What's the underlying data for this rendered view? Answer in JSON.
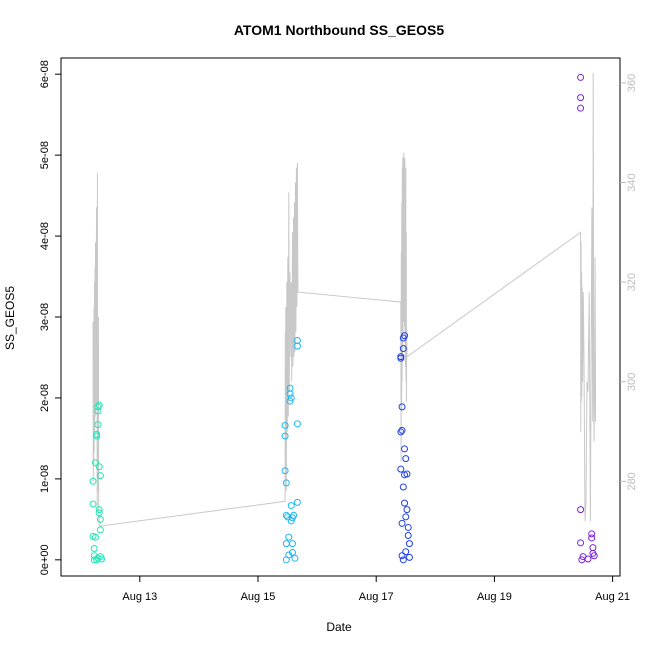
{
  "chart_data": {
    "type": "scatter",
    "title": "ATOM1 Northbound SS_GEOS5",
    "xlabel": "Date",
    "ylabel": "SS_GEOS5",
    "xlim": [
      "2023-08-11T16:00",
      "2023-08-21T03:00"
    ],
    "ylim": [
      -2e-09,
      6.2e-08
    ],
    "y_ticks": [
      "0e+00",
      "1e-08",
      "2e-08",
      "3e-08",
      "4e-08",
      "5e-08",
      "6e-08"
    ],
    "x_ticks": [
      "Aug 13",
      "Aug 15",
      "Aug 17",
      "Aug 19",
      "Aug 21"
    ],
    "y2_ticks": [
      "280",
      "300",
      "320",
      "340",
      "360"
    ],
    "y2lim": [
      261,
      365
    ],
    "colors": {
      "flight1": "#1de9b6",
      "flight2": "#1ab7f0",
      "flight3": "#1f3fe6",
      "flight4": "#7b1fe0",
      "gray_line": "#c8c8c8",
      "secondary_axis": "#bdbdbd"
    },
    "series": [
      {
        "color_key": "flight1",
        "points": [
          [
            "2023-08-12T05:00",
            9.7e-09
          ],
          [
            "2023-08-12T05:00",
            6.9e-09
          ],
          [
            "2023-08-12T05:00",
            2.9e-09
          ],
          [
            "2023-08-12T05:30",
            1.4e-09
          ],
          [
            "2023-08-12T05:30",
            5e-10
          ],
          [
            "2023-08-12T06:00",
            1.2e-08
          ],
          [
            "2023-08-12T06:00",
            2.8e-09
          ],
          [
            "2023-08-12T06:30",
            1.55e-08
          ],
          [
            "2023-08-12T06:30",
            1.53e-08
          ],
          [
            "2023-08-12T07:00",
            1.89e-08
          ],
          [
            "2023-08-12T07:00",
            1.84e-08
          ],
          [
            "2023-08-12T07:00",
            1.67e-08
          ],
          [
            "2023-08-12T07:30",
            1.91e-08
          ],
          [
            "2023-08-12T07:30",
            1.15e-08
          ],
          [
            "2023-08-12T07:30",
            6.2e-09
          ],
          [
            "2023-08-12T07:30",
            5.8e-09
          ],
          [
            "2023-08-12T08:00",
            1.04e-08
          ],
          [
            "2023-08-12T08:00",
            5e-09
          ],
          [
            "2023-08-12T08:00",
            3.7e-09
          ],
          [
            "2023-08-12T06:30",
            0.0
          ],
          [
            "2023-08-12T07:00",
            2e-10
          ],
          [
            "2023-08-12T08:00",
            4e-10
          ],
          [
            "2023-08-12T05:30",
            0.0
          ],
          [
            "2023-08-12T08:30",
            1e-10
          ]
        ]
      },
      {
        "color_key": "flight2",
        "points": [
          [
            "2023-08-15T11:00",
            1.66e-08
          ],
          [
            "2023-08-15T11:00",
            1.53e-08
          ],
          [
            "2023-08-15T11:00",
            1.1e-08
          ],
          [
            "2023-08-15T11:30",
            9.5e-09
          ],
          [
            "2023-08-15T11:30",
            5.5e-09
          ],
          [
            "2023-08-15T11:30",
            2e-09
          ],
          [
            "2023-08-15T12:00",
            5.3e-09
          ],
          [
            "2023-08-15T12:30",
            2.8e-09
          ],
          [
            "2023-08-15T13:00",
            2.12e-08
          ],
          [
            "2023-08-15T13:00",
            2.05e-08
          ],
          [
            "2023-08-15T13:00",
            1.96e-08
          ],
          [
            "2023-08-15T13:30",
            2e-08
          ],
          [
            "2023-08-15T13:30",
            6.7e-09
          ],
          [
            "2023-08-15T13:30",
            4.8e-09
          ],
          [
            "2023-08-15T14:00",
            5.2e-09
          ],
          [
            "2023-08-15T14:30",
            5.5e-09
          ],
          [
            "2023-08-15T14:00",
            2e-09
          ],
          [
            "2023-08-15T16:00",
            2.71e-08
          ],
          [
            "2023-08-15T16:00",
            2.64e-08
          ],
          [
            "2023-08-15T16:00",
            1.68e-08
          ],
          [
            "2023-08-15T16:00",
            7.1e-09
          ],
          [
            "2023-08-15T12:30",
            6e-10
          ],
          [
            "2023-08-15T14:00",
            9e-10
          ],
          [
            "2023-08-15T15:00",
            2e-10
          ],
          [
            "2023-08-15T11:30",
            0.0
          ]
        ]
      },
      {
        "color_key": "flight3",
        "points": [
          [
            "2023-08-17T10:00",
            2.51e-08
          ],
          [
            "2023-08-17T10:00",
            2.49e-08
          ],
          [
            "2023-08-17T10:00",
            1.58e-08
          ],
          [
            "2023-08-17T10:00",
            1.12e-08
          ],
          [
            "2023-08-17T10:30",
            1.89e-08
          ],
          [
            "2023-08-17T10:30",
            1.6e-08
          ],
          [
            "2023-08-17T11:00",
            2.74e-08
          ],
          [
            "2023-08-17T11:00",
            2.61e-08
          ],
          [
            "2023-08-17T11:00",
            9e-09
          ],
          [
            "2023-08-17T11:30",
            2.77e-08
          ],
          [
            "2023-08-17T11:30",
            1.37e-08
          ],
          [
            "2023-08-17T11:30",
            1.05e-08
          ],
          [
            "2023-08-17T11:30",
            7e-09
          ],
          [
            "2023-08-17T12:00",
            1.25e-08
          ],
          [
            "2023-08-17T12:00",
            5.3e-09
          ],
          [
            "2023-08-17T12:30",
            1.06e-08
          ],
          [
            "2023-08-17T12:30",
            6.2e-09
          ],
          [
            "2023-08-17T13:00",
            4e-09
          ],
          [
            "2023-08-17T13:00",
            3e-09
          ],
          [
            "2023-08-17T13:30",
            2e-09
          ],
          [
            "2023-08-17T10:30",
            4.5e-09
          ],
          [
            "2023-08-17T10:30",
            5e-10
          ],
          [
            "2023-08-17T12:00",
            1e-09
          ],
          [
            "2023-08-17T13:30",
            3e-10
          ],
          [
            "2023-08-17T11:00",
            0.0
          ]
        ]
      },
      {
        "color_key": "flight4",
        "points": [
          [
            "2023-08-20T11:00",
            5.96e-08
          ],
          [
            "2023-08-20T11:00",
            5.71e-08
          ],
          [
            "2023-08-20T11:00",
            5.58e-08
          ],
          [
            "2023-08-20T11:00",
            6.2e-09
          ],
          [
            "2023-08-20T11:00",
            2.1e-09
          ],
          [
            "2023-08-20T15:30",
            3.2e-09
          ],
          [
            "2023-08-20T15:30",
            2.7e-09
          ],
          [
            "2023-08-20T16:00",
            1.5e-09
          ],
          [
            "2023-08-20T16:00",
            8e-10
          ],
          [
            "2023-08-20T12:00",
            4e-10
          ],
          [
            "2023-08-20T14:00",
            1e-10
          ],
          [
            "2023-08-20T16:30",
            5e-10
          ],
          [
            "2023-08-20T11:30",
            0.0
          ]
        ]
      }
    ],
    "pressure_line": [
      [
        "2023-08-12T05:00",
        312
      ],
      [
        "2023-08-12T05:06",
        280
      ],
      [
        "2023-08-12T05:12",
        311
      ],
      [
        "2023-08-12T05:18",
        283
      ],
      [
        "2023-08-12T05:24",
        315
      ],
      [
        "2023-08-12T05:30",
        286
      ],
      [
        "2023-08-12T05:36",
        320
      ],
      [
        "2023-08-12T05:42",
        290
      ],
      [
        "2023-08-12T05:48",
        323
      ],
      [
        "2023-08-12T05:54",
        293
      ],
      [
        "2023-08-12T06:00",
        328
      ],
      [
        "2023-08-12T06:06",
        298
      ],
      [
        "2023-08-12T06:12",
        322
      ],
      [
        "2023-08-12T06:18",
        295
      ],
      [
        "2023-08-12T06:24",
        335
      ],
      [
        "2023-08-12T06:30",
        300
      ],
      [
        "2023-08-12T06:36",
        315
      ],
      [
        "2023-08-12T06:42",
        274
      ],
      [
        "2023-08-12T06:48",
        342
      ],
      [
        "2023-08-12T06:54",
        282
      ],
      [
        "2023-08-12T07:00",
        305
      ],
      [
        "2023-08-12T07:06",
        278
      ],
      [
        "2023-08-12T07:12",
        313
      ],
      [
        "2023-08-12T07:18",
        276
      ],
      [
        "2023-08-12T07:30",
        271
      ],
      [
        "2023-08-15T11:00",
        276
      ],
      [
        "2023-08-15T11:06",
        310
      ],
      [
        "2023-08-15T11:12",
        286
      ],
      [
        "2023-08-15T11:18",
        315
      ],
      [
        "2023-08-15T11:30",
        278
      ],
      [
        "2023-08-15T11:42",
        320
      ],
      [
        "2023-08-15T11:54",
        290
      ],
      [
        "2023-08-15T12:06",
        325
      ],
      [
        "2023-08-15T12:18",
        293
      ],
      [
        "2023-08-15T12:30",
        338
      ],
      [
        "2023-08-15T12:42",
        298
      ],
      [
        "2023-08-15T12:54",
        322
      ],
      [
        "2023-08-15T13:06",
        317
      ],
      [
        "2023-08-15T13:18",
        305
      ],
      [
        "2023-08-15T13:30",
        320
      ],
      [
        "2023-08-15T13:42",
        300
      ],
      [
        "2023-08-15T14:00",
        330
      ],
      [
        "2023-08-15T14:12",
        303
      ],
      [
        "2023-08-15T14:24",
        333
      ],
      [
        "2023-08-15T14:36",
        305
      ],
      [
        "2023-08-15T14:48",
        336
      ],
      [
        "2023-08-15T15:00",
        306
      ],
      [
        "2023-08-15T15:12",
        340
      ],
      [
        "2023-08-15T15:24",
        310
      ],
      [
        "2023-08-15T15:36",
        343
      ],
      [
        "2023-08-15T15:48",
        315
      ],
      [
        "2023-08-15T16:00",
        344
      ],
      [
        "2023-08-15T16:12",
        318
      ],
      [
        "2023-08-17T10:00",
        316
      ],
      [
        "2023-08-17T10:06",
        284
      ],
      [
        "2023-08-17T10:12",
        326
      ],
      [
        "2023-08-17T10:18",
        294
      ],
      [
        "2023-08-17T10:24",
        336
      ],
      [
        "2023-08-17T10:30",
        300
      ],
      [
        "2023-08-17T10:36",
        343
      ],
      [
        "2023-08-17T10:42",
        305
      ],
      [
        "2023-08-17T10:48",
        345
      ],
      [
        "2023-08-17T10:54",
        310
      ],
      [
        "2023-08-17T11:00",
        344
      ],
      [
        "2023-08-17T11:06",
        312
      ],
      [
        "2023-08-17T11:12",
        346
      ],
      [
        "2023-08-17T11:18",
        313
      ],
      [
        "2023-08-17T11:24",
        342
      ],
      [
        "2023-08-17T11:30",
        311
      ],
      [
        "2023-08-17T11:36",
        345
      ],
      [
        "2023-08-17T11:42",
        306
      ],
      [
        "2023-08-17T11:48",
        340
      ],
      [
        "2023-08-17T11:54",
        303
      ],
      [
        "2023-08-17T12:00",
        343
      ],
      [
        "2023-08-17T12:06",
        300
      ],
      [
        "2023-08-17T12:12",
        330
      ],
      [
        "2023-08-17T12:18",
        296
      ],
      [
        "2023-08-17T12:24",
        310
      ],
      [
        "2023-08-17T12:30",
        305
      ],
      [
        "2023-08-20T11:00",
        330
      ],
      [
        "2023-08-20T11:06",
        290
      ],
      [
        "2023-08-20T11:12",
        328
      ],
      [
        "2023-08-20T11:18",
        296
      ],
      [
        "2023-08-20T11:24",
        322
      ],
      [
        "2023-08-20T11:30",
        297
      ],
      [
        "2023-08-20T11:36",
        319
      ],
      [
        "2023-08-20T11:42",
        309
      ],
      [
        "2023-08-20T11:48",
        300
      ],
      [
        "2023-08-20T12:06",
        318
      ],
      [
        "2023-08-20T12:24",
        304
      ],
      [
        "2023-08-20T12:48",
        272
      ],
      [
        "2023-08-20T13:12",
        276
      ],
      [
        "2023-08-20T13:36",
        300
      ],
      [
        "2023-08-20T14:00",
        298
      ],
      [
        "2023-08-20T14:30",
        318
      ],
      [
        "2023-08-20T15:00",
        272
      ],
      [
        "2023-08-20T15:18",
        308
      ],
      [
        "2023-08-20T15:36",
        335
      ],
      [
        "2023-08-20T15:54",
        292
      ],
      [
        "2023-08-20T16:06",
        362
      ],
      [
        "2023-08-20T16:18",
        300
      ],
      [
        "2023-08-20T16:30",
        288
      ],
      [
        "2023-08-20T16:42",
        298
      ],
      [
        "2023-08-20T16:54",
        325
      ],
      [
        "2023-08-20T17:06",
        292
      ]
    ]
  }
}
